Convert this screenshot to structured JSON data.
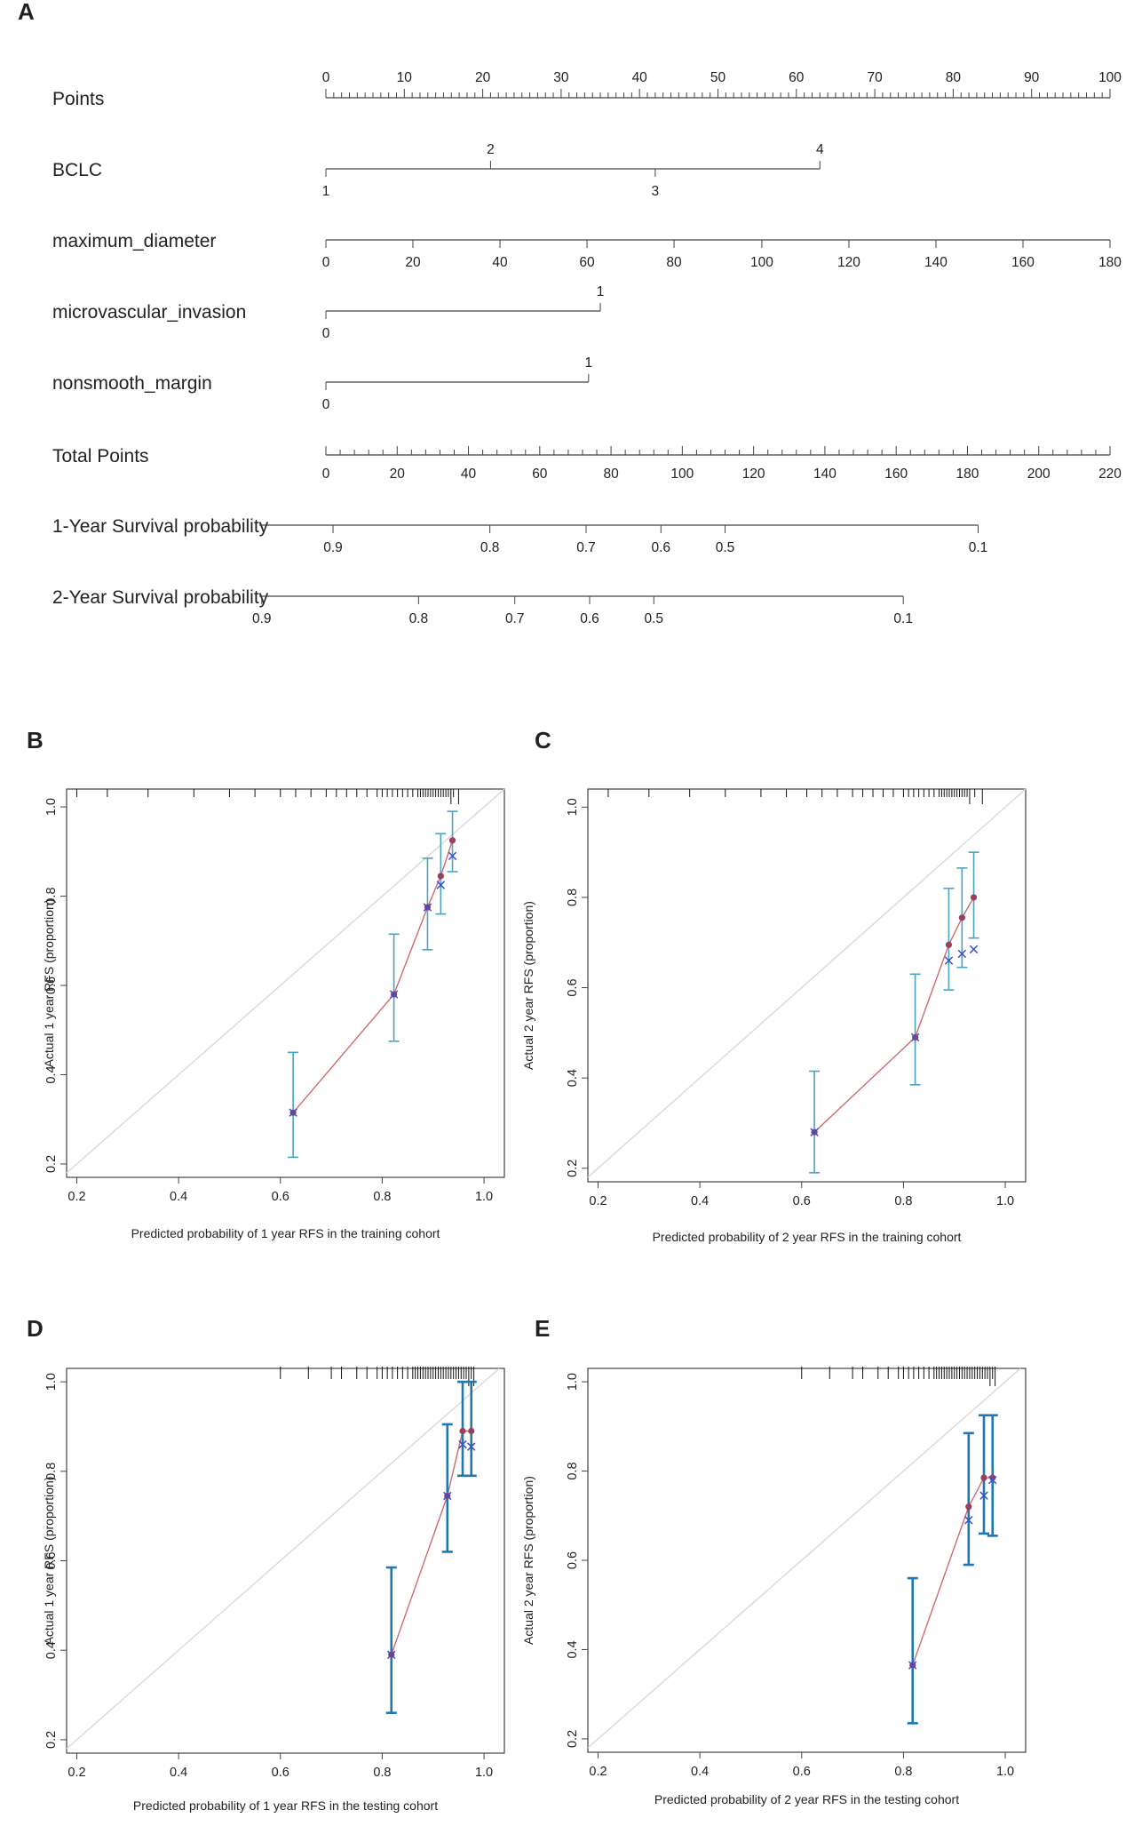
{
  "colors": {
    "axis": "#444444",
    "reference": "#d9d9d9",
    "predicted_line": "#d06a6a",
    "predicted_point": "#9a3f5c",
    "observed_x": "#3a4fd0",
    "error_bar_thin": "#4aa3c0",
    "error_bar_thick": "#1f78b4",
    "rug": "#111111"
  },
  "chart_data": [
    {
      "panel": "A",
      "type": "nomogram",
      "rows": [
        {
          "label": "Points",
          "kind": "points",
          "ticks": [
            {
              "v": 0,
              "t": "0"
            },
            {
              "v": 10,
              "t": "10"
            },
            {
              "v": 20,
              "t": "20"
            },
            {
              "v": 30,
              "t": "30"
            },
            {
              "v": 40,
              "t": "40"
            },
            {
              "v": 50,
              "t": "50"
            },
            {
              "v": 60,
              "t": "60"
            },
            {
              "v": 70,
              "t": "70"
            },
            {
              "v": 80,
              "t": "80"
            },
            {
              "v": 90,
              "t": "90"
            },
            {
              "v": 100,
              "t": "100"
            }
          ]
        },
        {
          "label": "BCLC",
          "kind": "variable",
          "ticks": [
            {
              "v": 0,
              "t": "1",
              "pos": "below"
            },
            {
              "v": 21,
              "t": "2",
              "pos": "above"
            },
            {
              "v": 42,
              "t": "3",
              "pos": "below"
            },
            {
              "v": 63,
              "t": "4",
              "pos": "above"
            }
          ]
        },
        {
          "label": "maximum_diameter",
          "kind": "variable",
          "ticks": [
            {
              "v": 0,
              "t": "0",
              "pos": "below"
            },
            {
              "v": 11.1,
              "t": "20",
              "pos": "below"
            },
            {
              "v": 22.2,
              "t": "40",
              "pos": "below"
            },
            {
              "v": 33.3,
              "t": "60",
              "pos": "below"
            },
            {
              "v": 44.4,
              "t": "80",
              "pos": "below"
            },
            {
              "v": 55.6,
              "t": "100",
              "pos": "below"
            },
            {
              "v": 66.7,
              "t": "120",
              "pos": "below"
            },
            {
              "v": 77.8,
              "t": "140",
              "pos": "below"
            },
            {
              "v": 88.9,
              "t": "160",
              "pos": "below"
            },
            {
              "v": 100,
              "t": "180",
              "pos": "below"
            }
          ]
        },
        {
          "label": "microvascular_invasion",
          "kind": "variable",
          "ticks": [
            {
              "v": 0,
              "t": "0",
              "pos": "below"
            },
            {
              "v": 35,
              "t": "1",
              "pos": "above"
            }
          ]
        },
        {
          "label": "nonsmooth_margin",
          "kind": "variable",
          "ticks": [
            {
              "v": 0,
              "t": "0",
              "pos": "below"
            },
            {
              "v": 33.5,
              "t": "1",
              "pos": "above"
            }
          ]
        },
        {
          "label": "Total Points",
          "kind": "total",
          "ticks": [
            {
              "v": 0,
              "t": "0"
            },
            {
              "v": 20,
              "t": "20"
            },
            {
              "v": 40,
              "t": "40"
            },
            {
              "v": 60,
              "t": "60"
            },
            {
              "v": 80,
              "t": "80"
            },
            {
              "v": 100,
              "t": "100"
            },
            {
              "v": 120,
              "t": "120"
            },
            {
              "v": 140,
              "t": "140"
            },
            {
              "v": 160,
              "t": "160"
            },
            {
              "v": 180,
              "t": "180"
            },
            {
              "v": 200,
              "t": "200"
            },
            {
              "v": 220,
              "t": "220"
            }
          ]
        },
        {
          "label": "1-Year Survival probability",
          "kind": "probability",
          "ticks": [
            {
              "v": 2,
              "t": "0.9"
            },
            {
              "v": 46,
              "t": "0.8"
            },
            {
              "v": 73,
              "t": "0.7"
            },
            {
              "v": 94,
              "t": "0.6"
            },
            {
              "v": 112,
              "t": "0.5"
            },
            {
              "v": 183,
              "t": "0.1"
            }
          ]
        },
        {
          "label": "2-Year Survival probability",
          "kind": "probability",
          "ticks": [
            {
              "v": -18,
              "t": "0.9"
            },
            {
              "v": 26,
              "t": "0.8"
            },
            {
              "v": 53,
              "t": "0.7"
            },
            {
              "v": 74,
              "t": "0.6"
            },
            {
              "v": 92,
              "t": "0.5"
            },
            {
              "v": 162,
              "t": "0.1"
            }
          ]
        }
      ]
    },
    {
      "panel": "B",
      "type": "calibration",
      "xlabel": "Predicted probability of 1 year RFS in the training cohort",
      "ylabel": "Actual 1 year RFS (proportion)",
      "xlim": [
        0.18,
        1.04
      ],
      "ylim": [
        0.17,
        1.04
      ],
      "xticks": [
        0.2,
        0.4,
        0.6,
        0.8,
        1.0
      ],
      "yticks": [
        0.2,
        0.4,
        0.6,
        0.8,
        1.0
      ],
      "thick_bars": false,
      "rug": [
        0.2,
        0.26,
        0.34,
        0.43,
        0.5,
        0.55,
        0.6,
        0.63,
        0.66,
        0.69,
        0.71,
        0.73,
        0.75,
        0.77,
        0.79,
        0.8,
        0.81,
        0.82,
        0.83,
        0.84,
        0.85,
        0.86,
        0.87,
        0.875,
        0.88,
        0.885,
        0.89,
        0.895,
        0.9,
        0.905,
        0.91,
        0.915,
        0.92,
        0.925,
        0.93,
        0.935,
        0.94,
        0.95
      ],
      "points": [
        {
          "x": 0.625,
          "predicted": 0.315,
          "observed": 0.315,
          "lo": 0.215,
          "hi": 0.45
        },
        {
          "x": 0.823,
          "predicted": 0.58,
          "observed": 0.58,
          "lo": 0.475,
          "hi": 0.715
        },
        {
          "x": 0.889,
          "predicted": 0.775,
          "observed": 0.775,
          "lo": 0.68,
          "hi": 0.885
        },
        {
          "x": 0.915,
          "predicted": 0.845,
          "observed": 0.825,
          "lo": 0.76,
          "hi": 0.94
        },
        {
          "x": 0.938,
          "predicted": 0.925,
          "observed": 0.89,
          "lo": 0.855,
          "hi": 0.99
        }
      ]
    },
    {
      "panel": "C",
      "type": "calibration",
      "xlabel": "Predicted probability of 2 year RFS in the training cohort",
      "ylabel": "Actual 2 year RFS (proportion)",
      "xlim": [
        0.18,
        1.04
      ],
      "ylim": [
        0.17,
        1.04
      ],
      "xticks": [
        0.2,
        0.4,
        0.6,
        0.8,
        1.0
      ],
      "yticks": [
        0.2,
        0.4,
        0.6,
        0.8,
        1.0
      ],
      "thick_bars": false,
      "rug": [
        0.22,
        0.3,
        0.38,
        0.45,
        0.52,
        0.57,
        0.61,
        0.64,
        0.67,
        0.7,
        0.72,
        0.74,
        0.76,
        0.78,
        0.8,
        0.81,
        0.82,
        0.83,
        0.84,
        0.85,
        0.86,
        0.87,
        0.875,
        0.88,
        0.885,
        0.89,
        0.895,
        0.9,
        0.905,
        0.91,
        0.915,
        0.92,
        0.925,
        0.93,
        0.94,
        0.955
      ],
      "points": [
        {
          "x": 0.625,
          "predicted": 0.28,
          "observed": 0.28,
          "lo": 0.19,
          "hi": 0.415
        },
        {
          "x": 0.823,
          "predicted": 0.49,
          "observed": 0.49,
          "lo": 0.385,
          "hi": 0.63
        },
        {
          "x": 0.889,
          "predicted": 0.695,
          "observed": 0.66,
          "lo": 0.595,
          "hi": 0.82
        },
        {
          "x": 0.915,
          "predicted": 0.755,
          "observed": 0.675,
          "lo": 0.645,
          "hi": 0.865
        },
        {
          "x": 0.938,
          "predicted": 0.8,
          "observed": 0.685,
          "lo": 0.71,
          "hi": 0.9
        }
      ]
    },
    {
      "panel": "D",
      "type": "calibration",
      "xlabel": "Predicted probability of 1 year RFS in the testing cohort",
      "ylabel": "Actual 1 year RFS (proportion)",
      "xlim": [
        0.18,
        1.04
      ],
      "ylim": [
        0.17,
        1.03
      ],
      "xticks": [
        0.2,
        0.4,
        0.6,
        0.8,
        1.0
      ],
      "yticks": [
        0.2,
        0.4,
        0.6,
        0.8,
        1.0
      ],
      "thick_bars": true,
      "rug": [
        0.6,
        0.655,
        0.7,
        0.72,
        0.75,
        0.77,
        0.79,
        0.8,
        0.81,
        0.82,
        0.83,
        0.84,
        0.85,
        0.86,
        0.865,
        0.87,
        0.875,
        0.88,
        0.885,
        0.89,
        0.895,
        0.9,
        0.905,
        0.91,
        0.915,
        0.92,
        0.925,
        0.93,
        0.935,
        0.94,
        0.945,
        0.95,
        0.955,
        0.96,
        0.965,
        0.97,
        0.975,
        0.98
      ],
      "points": [
        {
          "x": 0.818,
          "predicted": 0.39,
          "observed": 0.39,
          "lo": 0.26,
          "hi": 0.585
        },
        {
          "x": 0.928,
          "predicted": 0.745,
          "observed": 0.745,
          "lo": 0.62,
          "hi": 0.905
        },
        {
          "x": 0.958,
          "predicted": 0.89,
          "observed": 0.86,
          "lo": 0.79,
          "hi": 1.0
        },
        {
          "x": 0.975,
          "predicted": 0.89,
          "observed": 0.855,
          "lo": 0.79,
          "hi": 1.0
        }
      ]
    },
    {
      "panel": "E",
      "type": "calibration",
      "xlabel": "Predicted probability of 2 year RFS in the testing cohort",
      "ylabel": "Actual 2 year RFS (proportion)",
      "xlim": [
        0.18,
        1.04
      ],
      "ylim": [
        0.17,
        1.03
      ],
      "xticks": [
        0.2,
        0.4,
        0.6,
        0.8,
        1.0
      ],
      "yticks": [
        0.2,
        0.4,
        0.6,
        0.8,
        1.0
      ],
      "thick_bars": true,
      "rug": [
        0.6,
        0.655,
        0.7,
        0.72,
        0.75,
        0.77,
        0.79,
        0.8,
        0.81,
        0.82,
        0.83,
        0.84,
        0.85,
        0.86,
        0.865,
        0.87,
        0.875,
        0.88,
        0.885,
        0.89,
        0.895,
        0.9,
        0.905,
        0.91,
        0.915,
        0.92,
        0.925,
        0.93,
        0.935,
        0.94,
        0.945,
        0.95,
        0.955,
        0.96,
        0.965,
        0.97,
        0.975,
        0.98
      ],
      "points": [
        {
          "x": 0.818,
          "predicted": 0.365,
          "observed": 0.365,
          "lo": 0.235,
          "hi": 0.56
        },
        {
          "x": 0.928,
          "predicted": 0.72,
          "observed": 0.69,
          "lo": 0.59,
          "hi": 0.885
        },
        {
          "x": 0.958,
          "predicted": 0.785,
          "observed": 0.745,
          "lo": 0.66,
          "hi": 0.925
        },
        {
          "x": 0.975,
          "predicted": 0.785,
          "observed": 0.78,
          "lo": 0.655,
          "hi": 0.925
        }
      ]
    }
  ]
}
